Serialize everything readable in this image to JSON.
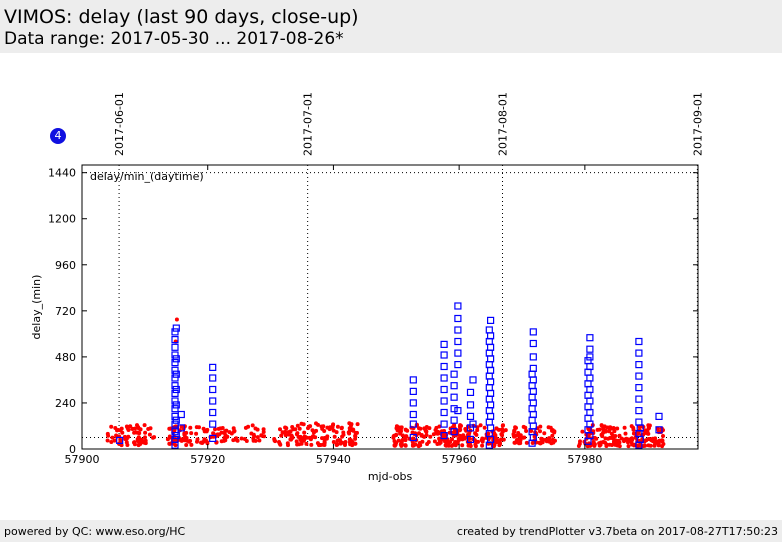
{
  "header": {
    "title": "VIMOS: delay (last 90 days, close-up)",
    "subtitle": "Data range: 2017-05-30 ... 2017-08-26*"
  },
  "badge": "4",
  "footer": {
    "left": "powered by QC: www.eso.org/HC",
    "right": "created by trendPlotter v3.7beta on 2017-08-27T17:50:23"
  },
  "chart_data": {
    "type": "scatter",
    "title": "",
    "xlabel": "mjd-obs",
    "ylabel": "delay_(min)",
    "inner_label": "delay/min_(daytime)",
    "xlim": [
      57900,
      57998
    ],
    "ylim": [
      0,
      1480
    ],
    "xticks": [
      57900,
      57920,
      57940,
      57960,
      57980
    ],
    "yticks": [
      0,
      240,
      480,
      720,
      960,
      1200,
      1440
    ],
    "reference_lines_y": [
      1440,
      60
    ],
    "date_markers": [
      {
        "label": "2017-06-01",
        "x": 57905.9
      },
      {
        "label": "2017-07-01",
        "x": 57935.9
      },
      {
        "label": "2017-08-01",
        "x": 57966.9
      },
      {
        "label": "2017-09-01",
        "x": 57997.9
      }
    ],
    "colors": {
      "daytime": "#ff0000",
      "other": "#0000ff"
    },
    "series": [
      {
        "marker": "dot",
        "color": "#ff0000",
        "clusters": [
          {
            "x": [
              57904.0,
              57911.5
            ],
            "y": [
              20,
              125
            ],
            "n": 70
          },
          {
            "x": [
              57913.5,
              57917.5
            ],
            "y": [
              20,
              120
            ],
            "n": 45
          },
          {
            "x": [
              57918.0,
              57924.0
            ],
            "y": [
              30,
              115
            ],
            "n": 45
          },
          {
            "x": [
              57924.0,
              57929.0
            ],
            "y": [
              40,
              125
            ],
            "n": 30
          },
          {
            "x": [
              57930.5,
              57944.0
            ],
            "y": [
              20,
              135
            ],
            "n": 140
          },
          {
            "x": [
              57949.5,
              57967.5
            ],
            "y": [
              15,
              130
            ],
            "n": 230
          },
          {
            "x": [
              57968.5,
              57975.5
            ],
            "y": [
              30,
              120
            ],
            "n": 70
          },
          {
            "x": [
              57979.0,
              57992.5
            ],
            "y": [
              15,
              125
            ],
            "n": 180
          }
        ],
        "points": [
          {
            "x": 57915.1,
            "y": 675
          },
          {
            "x": 57914.9,
            "y": 560
          }
        ]
      },
      {
        "marker": "square",
        "color": "#0000ff",
        "points": [
          {
            "x": 57906.0,
            "y": 45
          },
          {
            "x": 57914.8,
            "y": 20
          },
          {
            "x": 57914.8,
            "y": 50
          },
          {
            "x": 57914.8,
            "y": 90
          },
          {
            "x": 57914.8,
            "y": 130
          },
          {
            "x": 57914.8,
            "y": 170
          },
          {
            "x": 57914.8,
            "y": 210
          },
          {
            "x": 57914.8,
            "y": 250
          },
          {
            "x": 57914.8,
            "y": 290
          },
          {
            "x": 57914.8,
            "y": 330
          },
          {
            "x": 57914.8,
            "y": 370
          },
          {
            "x": 57914.8,
            "y": 410
          },
          {
            "x": 57914.8,
            "y": 450
          },
          {
            "x": 57914.8,
            "y": 490
          },
          {
            "x": 57914.8,
            "y": 530
          },
          {
            "x": 57914.8,
            "y": 570
          },
          {
            "x": 57914.8,
            "y": 610
          },
          {
            "x": 57915.0,
            "y": 70
          },
          {
            "x": 57915.0,
            "y": 150
          },
          {
            "x": 57915.0,
            "y": 230
          },
          {
            "x": 57915.0,
            "y": 310
          },
          {
            "x": 57915.0,
            "y": 390
          },
          {
            "x": 57915.0,
            "y": 470
          },
          {
            "x": 57915.0,
            "y": 630
          },
          {
            "x": 57915.8,
            "y": 180
          },
          {
            "x": 57915.8,
            "y": 110
          },
          {
            "x": 57920.8,
            "y": 55
          },
          {
            "x": 57920.8,
            "y": 130
          },
          {
            "x": 57920.8,
            "y": 190
          },
          {
            "x": 57920.8,
            "y": 250
          },
          {
            "x": 57920.8,
            "y": 310
          },
          {
            "x": 57920.8,
            "y": 370
          },
          {
            "x": 57920.8,
            "y": 425
          },
          {
            "x": 57952.7,
            "y": 60
          },
          {
            "x": 57952.7,
            "y": 130
          },
          {
            "x": 57952.7,
            "y": 180
          },
          {
            "x": 57952.7,
            "y": 240
          },
          {
            "x": 57952.7,
            "y": 300
          },
          {
            "x": 57952.7,
            "y": 360
          },
          {
            "x": 57957.6,
            "y": 70
          },
          {
            "x": 57957.6,
            "y": 130
          },
          {
            "x": 57957.6,
            "y": 190
          },
          {
            "x": 57957.6,
            "y": 250
          },
          {
            "x": 57957.6,
            "y": 310
          },
          {
            "x": 57957.6,
            "y": 370
          },
          {
            "x": 57957.6,
            "y": 430
          },
          {
            "x": 57957.6,
            "y": 490
          },
          {
            "x": 57957.6,
            "y": 545
          },
          {
            "x": 57959.2,
            "y": 90
          },
          {
            "x": 57959.2,
            "y": 150
          },
          {
            "x": 57959.2,
            "y": 210
          },
          {
            "x": 57959.2,
            "y": 270
          },
          {
            "x": 57959.2,
            "y": 330
          },
          {
            "x": 57959.2,
            "y": 390
          },
          {
            "x": 57959.8,
            "y": 200
          },
          {
            "x": 57959.8,
            "y": 440
          },
          {
            "x": 57959.8,
            "y": 500
          },
          {
            "x": 57959.8,
            "y": 560
          },
          {
            "x": 57959.8,
            "y": 620
          },
          {
            "x": 57959.8,
            "y": 680
          },
          {
            "x": 57959.8,
            "y": 745
          },
          {
            "x": 57961.8,
            "y": 50
          },
          {
            "x": 57961.8,
            "y": 110
          },
          {
            "x": 57961.8,
            "y": 170
          },
          {
            "x": 57961.8,
            "y": 230
          },
          {
            "x": 57961.8,
            "y": 295
          },
          {
            "x": 57962.2,
            "y": 130
          },
          {
            "x": 57962.2,
            "y": 360
          },
          {
            "x": 57964.8,
            "y": 20
          },
          {
            "x": 57964.8,
            "y": 80
          },
          {
            "x": 57964.8,
            "y": 140
          },
          {
            "x": 57964.8,
            "y": 200
          },
          {
            "x": 57964.8,
            "y": 260
          },
          {
            "x": 57964.8,
            "y": 320
          },
          {
            "x": 57964.8,
            "y": 380
          },
          {
            "x": 57964.8,
            "y": 440
          },
          {
            "x": 57964.8,
            "y": 500
          },
          {
            "x": 57964.8,
            "y": 560
          },
          {
            "x": 57964.8,
            "y": 620
          },
          {
            "x": 57965.0,
            "y": 50
          },
          {
            "x": 57965.0,
            "y": 110
          },
          {
            "x": 57965.0,
            "y": 170
          },
          {
            "x": 57965.0,
            "y": 230
          },
          {
            "x": 57965.0,
            "y": 290
          },
          {
            "x": 57965.0,
            "y": 350
          },
          {
            "x": 57965.0,
            "y": 410
          },
          {
            "x": 57965.0,
            "y": 470
          },
          {
            "x": 57965.0,
            "y": 530
          },
          {
            "x": 57965.0,
            "y": 590
          },
          {
            "x": 57965.0,
            "y": 670
          },
          {
            "x": 57971.6,
            "y": 30
          },
          {
            "x": 57971.6,
            "y": 90
          },
          {
            "x": 57971.6,
            "y": 150
          },
          {
            "x": 57971.6,
            "y": 210
          },
          {
            "x": 57971.6,
            "y": 270
          },
          {
            "x": 57971.6,
            "y": 330
          },
          {
            "x": 57971.6,
            "y": 390
          },
          {
            "x": 57971.8,
            "y": 60
          },
          {
            "x": 57971.8,
            "y": 120
          },
          {
            "x": 57971.8,
            "y": 180
          },
          {
            "x": 57971.8,
            "y": 240
          },
          {
            "x": 57971.8,
            "y": 300
          },
          {
            "x": 57971.8,
            "y": 360
          },
          {
            "x": 57971.8,
            "y": 420
          },
          {
            "x": 57971.8,
            "y": 480
          },
          {
            "x": 57971.8,
            "y": 550
          },
          {
            "x": 57971.8,
            "y": 610
          },
          {
            "x": 57980.5,
            "y": 40
          },
          {
            "x": 57980.5,
            "y": 100
          },
          {
            "x": 57980.5,
            "y": 160
          },
          {
            "x": 57980.5,
            "y": 220
          },
          {
            "x": 57980.5,
            "y": 280
          },
          {
            "x": 57980.5,
            "y": 340
          },
          {
            "x": 57980.5,
            "y": 400
          },
          {
            "x": 57980.5,
            "y": 460
          },
          {
            "x": 57980.8,
            "y": 70
          },
          {
            "x": 57980.8,
            "y": 130
          },
          {
            "x": 57980.8,
            "y": 190
          },
          {
            "x": 57980.8,
            "y": 250
          },
          {
            "x": 57980.8,
            "y": 310
          },
          {
            "x": 57980.8,
            "y": 370
          },
          {
            "x": 57980.8,
            "y": 430
          },
          {
            "x": 57980.8,
            "y": 480
          },
          {
            "x": 57980.8,
            "y": 520
          },
          {
            "x": 57980.8,
            "y": 580
          },
          {
            "x": 57988.6,
            "y": 20
          },
          {
            "x": 57988.6,
            "y": 80
          },
          {
            "x": 57988.6,
            "y": 140
          },
          {
            "x": 57988.6,
            "y": 200
          },
          {
            "x": 57988.6,
            "y": 260
          },
          {
            "x": 57988.6,
            "y": 320
          },
          {
            "x": 57988.6,
            "y": 380
          },
          {
            "x": 57988.6,
            "y": 440
          },
          {
            "x": 57988.6,
            "y": 500
          },
          {
            "x": 57988.6,
            "y": 560
          },
          {
            "x": 57988.8,
            "y": 50
          },
          {
            "x": 57988.8,
            "y": 110
          },
          {
            "x": 57991.8,
            "y": 100
          },
          {
            "x": 57991.8,
            "y": 170
          }
        ]
      }
    ]
  }
}
